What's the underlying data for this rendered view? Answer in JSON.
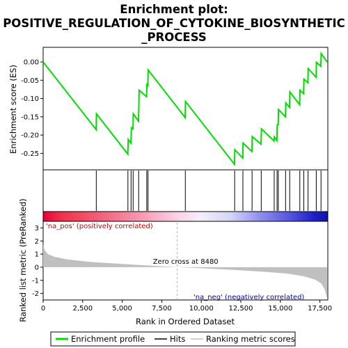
{
  "chart_data": {
    "title_lines": [
      "Enrichment plot:",
      "POSITIVE_REGULATION_OF_CYTOKINE_BIOSYNTHETIC",
      "_PROCESS"
    ],
    "type": "line",
    "es_panel": {
      "ylabel": "Enrichment score (ES)",
      "ylim": [
        -0.295,
        0.04
      ],
      "yticks": [
        "0.00",
        "-0.05",
        "-0.10",
        "-0.15",
        "-0.20",
        "-0.25"
      ],
      "ytick_values": [
        0.0,
        -0.05,
        -0.1,
        -0.15,
        -0.2,
        -0.25
      ],
      "color": "#00dd00",
      "points": [
        [
          0,
          0.0
        ],
        [
          3350,
          -0.185
        ],
        [
          3370,
          -0.142
        ],
        [
          5350,
          -0.252
        ],
        [
          5380,
          -0.212
        ],
        [
          5550,
          -0.222
        ],
        [
          5580,
          -0.18
        ],
        [
          5680,
          -0.183
        ],
        [
          5700,
          -0.142
        ],
        [
          6030,
          -0.162
        ],
        [
          6050,
          -0.12
        ],
        [
          6070,
          -0.077
        ],
        [
          6540,
          -0.095
        ],
        [
          6560,
          -0.062
        ],
        [
          6620,
          -0.065
        ],
        [
          6640,
          -0.022
        ],
        [
          8980,
          -0.152
        ],
        [
          9000,
          -0.108
        ],
        [
          12100,
          -0.28
        ],
        [
          12120,
          -0.24
        ],
        [
          12620,
          -0.263
        ],
        [
          12640,
          -0.222
        ],
        [
          13200,
          -0.245
        ],
        [
          13220,
          -0.204
        ],
        [
          13780,
          -0.225
        ],
        [
          13800,
          -0.183
        ],
        [
          14600,
          -0.216
        ],
        [
          14620,
          -0.205
        ],
        [
          14780,
          -0.215
        ],
        [
          14800,
          -0.172
        ],
        [
          14860,
          -0.172
        ],
        [
          14880,
          -0.13
        ],
        [
          15320,
          -0.15
        ],
        [
          15340,
          -0.112
        ],
        [
          15580,
          -0.124
        ],
        [
          15600,
          -0.082
        ],
        [
          16220,
          -0.117
        ],
        [
          16240,
          -0.077
        ],
        [
          16470,
          -0.087
        ],
        [
          16490,
          -0.047
        ],
        [
          16740,
          -0.057
        ],
        [
          16760,
          -0.018
        ],
        [
          17260,
          -0.042
        ],
        [
          17280,
          -0.001
        ],
        [
          17560,
          -0.012
        ],
        [
          17580,
          0.023
        ],
        [
          17950,
          0.0
        ]
      ]
    },
    "hits": [
      3360,
      5360,
      5560,
      5690,
      6040,
      6550,
      6630,
      8990,
      12110,
      12630,
      13210,
      13790,
      14610,
      14790,
      14870,
      15330,
      15590,
      16230,
      16480,
      16750,
      17270,
      17570
    ],
    "ranked_panel": {
      "ylabel": "Ranked list metric (PreRanked)",
      "ylim": [
        -2.5,
        3.5
      ],
      "yticks": [
        "3",
        "2",
        "1",
        "0",
        "-1",
        "-2"
      ],
      "ytick_values": [
        3,
        2,
        1,
        0,
        -1,
        -2
      ],
      "curve": [
        [
          0,
          1.75
        ],
        [
          100,
          1.3
        ],
        [
          300,
          1.0
        ],
        [
          700,
          0.8
        ],
        [
          1500,
          0.6
        ],
        [
          3000,
          0.4
        ],
        [
          5000,
          0.25
        ],
        [
          7000,
          0.1
        ],
        [
          8480,
          0.0
        ],
        [
          10000,
          -0.08
        ],
        [
          12000,
          -0.2
        ],
        [
          14000,
          -0.35
        ],
        [
          15500,
          -0.5
        ],
        [
          16500,
          -0.7
        ],
        [
          17200,
          -0.95
        ],
        [
          17600,
          -1.25
        ],
        [
          17800,
          -1.7
        ],
        [
          17950,
          -2.35
        ]
      ],
      "zero_cross_label": "Zero cross at 8480",
      "zero_cross_x": 8480,
      "pos_label": "'na_pos' (positively correlated)",
      "neg_label": "'na_neg' (negatively correlated)"
    },
    "xlabel": "Rank in Ordered Dataset",
    "xlim": [
      0,
      18000
    ],
    "xticks": [
      "0",
      "2,500",
      "5,000",
      "7,500",
      "10,000",
      "12,500",
      "15,000",
      "17,500"
    ],
    "xtick_values": [
      0,
      2500,
      5000,
      7500,
      10000,
      12500,
      15000,
      17500
    ],
    "legend": {
      "entries": [
        {
          "label": "Enrichment profile",
          "color": "#00dd00",
          "kind": "line"
        },
        {
          "label": "Hits",
          "color": "#000000",
          "kind": "line"
        },
        {
          "label": "Ranking metric scores",
          "color": "#c0c0c0",
          "kind": "line"
        }
      ]
    },
    "colors": {
      "pos_label": "#cc0000",
      "neg_label": "#0000cc",
      "ranked_fill": "#c0c0c0",
      "zero_line": "#aaaaaa"
    }
  }
}
